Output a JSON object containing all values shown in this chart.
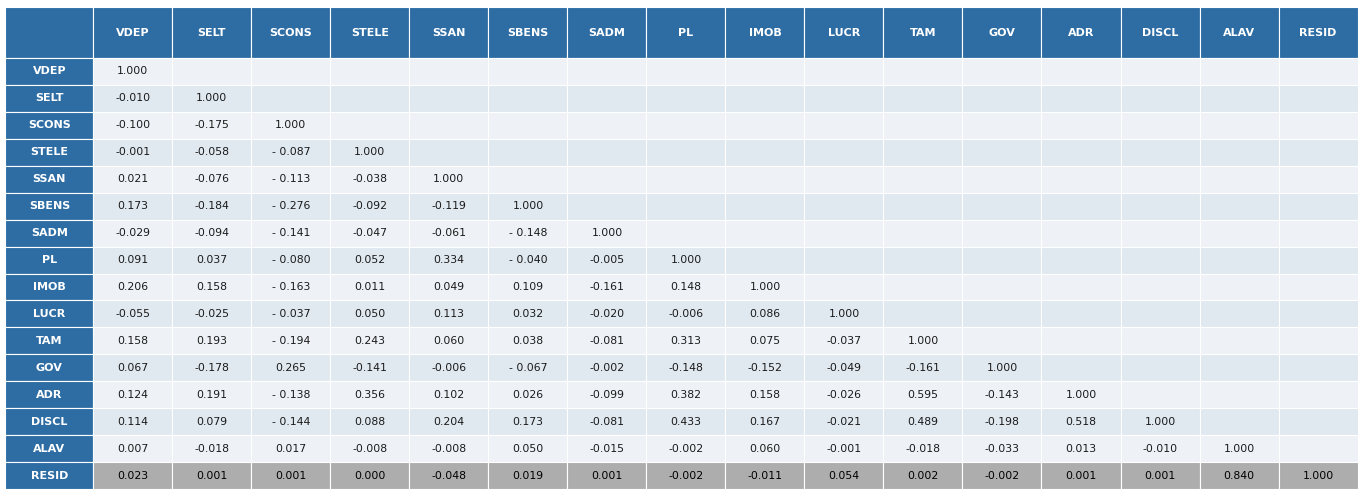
{
  "columns": [
    "VDEP",
    "SELT",
    "SCONS",
    "STELE",
    "SSAN",
    "SBENS",
    "SADM",
    "PL",
    "IMOB",
    "LUCR",
    "TAM",
    "GOV",
    "ADR",
    "DISCL",
    "ALAV",
    "RESID"
  ],
  "rows": [
    "VDEP",
    "SELT",
    "SCONS",
    "STELE",
    "SSAN",
    "SBENS",
    "SADM",
    "PL",
    "IMOB",
    "LUCR",
    "TAM",
    "GOV",
    "ADR",
    "DISCL",
    "ALAV",
    "RESID"
  ],
  "data": [
    [
      "1.000",
      "",
      "",
      "",
      "",
      "",
      "",
      "",
      "",
      "",
      "",
      "",
      "",
      "",
      "",
      ""
    ],
    [
      "-0.010",
      "1.000",
      "",
      "",
      "",
      "",
      "",
      "",
      "",
      "",
      "",
      "",
      "",
      "",
      "",
      ""
    ],
    [
      "-0.100",
      "-0.175",
      "1.000",
      "",
      "",
      "",
      "",
      "",
      "",
      "",
      "",
      "",
      "",
      "",
      "",
      ""
    ],
    [
      "-0.001",
      "-0.058",
      "- 0.087",
      "1.000",
      "",
      "",
      "",
      "",
      "",
      "",
      "",
      "",
      "",
      "",
      "",
      ""
    ],
    [
      "0.021",
      "-0.076",
      "- 0.113",
      "-0.038",
      "1.000",
      "",
      "",
      "",
      "",
      "",
      "",
      "",
      "",
      "",
      "",
      ""
    ],
    [
      "0.173",
      "-0.184",
      "- 0.276",
      "-0.092",
      "-0.119",
      "1.000",
      "",
      "",
      "",
      "",
      "",
      "",
      "",
      "",
      "",
      ""
    ],
    [
      "-0.029",
      "-0.094",
      "- 0.141",
      "-0.047",
      "-0.061",
      "- 0.148",
      "1.000",
      "",
      "",
      "",
      "",
      "",
      "",
      "",
      "",
      ""
    ],
    [
      "0.091",
      "0.037",
      "- 0.080",
      "0.052",
      "0.334",
      "- 0.040",
      "-0.005",
      "1.000",
      "",
      "",
      "",
      "",
      "",
      "",
      "",
      ""
    ],
    [
      "0.206",
      "0.158",
      "- 0.163",
      "0.011",
      "0.049",
      "0.109",
      "-0.161",
      "0.148",
      "1.000",
      "",
      "",
      "",
      "",
      "",
      "",
      ""
    ],
    [
      "-0.055",
      "-0.025",
      "- 0.037",
      "0.050",
      "0.113",
      "0.032",
      "-0.020",
      "-0.006",
      "0.086",
      "1.000",
      "",
      "",
      "",
      "",
      "",
      ""
    ],
    [
      "0.158",
      "0.193",
      "- 0.194",
      "0.243",
      "0.060",
      "0.038",
      "-0.081",
      "0.313",
      "0.075",
      "-0.037",
      "1.000",
      "",
      "",
      "",
      "",
      ""
    ],
    [
      "0.067",
      "-0.178",
      "0.265",
      "-0.141",
      "-0.006",
      "- 0.067",
      "-0.002",
      "-0.148",
      "-0.152",
      "-0.049",
      "-0.161",
      "1.000",
      "",
      "",
      "",
      ""
    ],
    [
      "0.124",
      "0.191",
      "- 0.138",
      "0.356",
      "0.102",
      "0.026",
      "-0.099",
      "0.382",
      "0.158",
      "-0.026",
      "0.595",
      "-0.143",
      "1.000",
      "",
      "",
      ""
    ],
    [
      "0.114",
      "0.079",
      "- 0.144",
      "0.088",
      "0.204",
      "0.173",
      "-0.081",
      "0.433",
      "0.167",
      "-0.021",
      "0.489",
      "-0.198",
      "0.518",
      "1.000",
      "",
      ""
    ],
    [
      "0.007",
      "-0.018",
      "0.017",
      "-0.008",
      "-0.008",
      "0.050",
      "-0.015",
      "-0.002",
      "0.060",
      "-0.001",
      "-0.018",
      "-0.033",
      "0.013",
      "-0.010",
      "1.000",
      ""
    ],
    [
      "0.023",
      "0.001",
      "0.001",
      "0.000",
      "-0.048",
      "0.019",
      "0.001",
      "-0.002",
      "-0.011",
      "0.054",
      "0.002",
      "-0.002",
      "0.001",
      "0.001",
      "0.840",
      "1.000"
    ]
  ],
  "header_bg": "#2E6DA4",
  "header_text": "#FFFFFF",
  "row_label_bg": "#2E6DA4",
  "row_label_text": "#FFFFFF",
  "cell_bg_light": "#EEF2F7",
  "cell_bg_dark": "#E0E8F0",
  "resid_bg": "#ADADAD",
  "resid_text": "#000000",
  "data_text_color": "#1a1a1a",
  "font_size": 7.8,
  "header_font_size": 8.0
}
